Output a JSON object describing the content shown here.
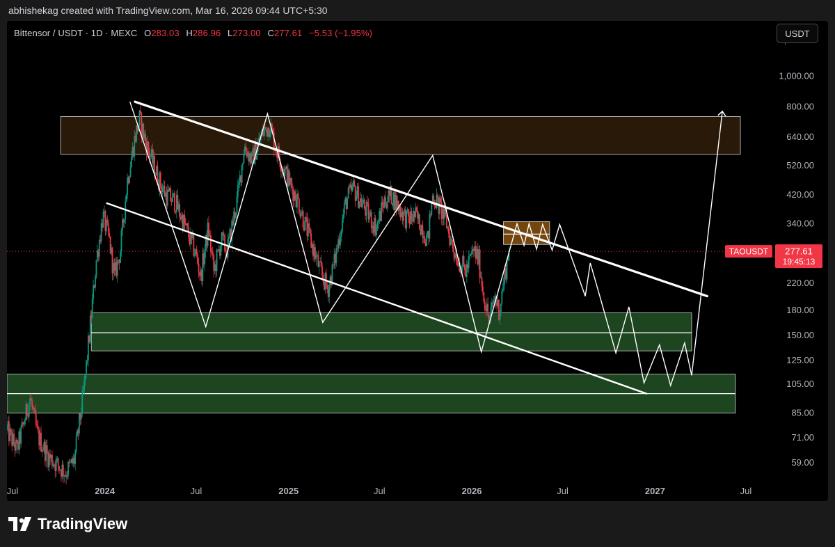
{
  "header": {
    "credit": "abhishekag created with TradingView.com, Mar 16, 2026 09:44 UTC+5:30"
  },
  "legend": {
    "symbol": "Bittensor / USDT · 1D · MEXC",
    "o_label": "O",
    "o_val": "283.03",
    "h_label": "H",
    "h_val": "286.96",
    "l_label": "L",
    "l_val": "273.00",
    "c_label": "C",
    "c_val": "277.61",
    "change": "−5.53 (−1.95%)"
  },
  "currency_button": "USDT",
  "price_tag": {
    "symbol": "TAOUSDT",
    "price": "277.61",
    "countdown": "19:45:13"
  },
  "brand": {
    "name": "TradingView"
  },
  "colors": {
    "background": "#000000",
    "up": "#089981",
    "down": "#f23645",
    "resistance_zone": "#2a1a08",
    "support_zone": "#1f4a22",
    "orange_zone": "#7a4a10",
    "price_tag": "#f23645",
    "drawing": "#ffffff"
  },
  "chart_data": {
    "type": "candlestick",
    "scale": "log",
    "ylim": [
      52,
      1500
    ],
    "x_range": [
      "2023-06-20",
      "2027-08-20"
    ],
    "y_ticks": [
      "1,300.00",
      "1,000.00",
      "800.00",
      "640.00",
      "520.00",
      "420.00",
      "340.00",
      "220.00",
      "180.00",
      "150.00",
      "125.00",
      "105.00",
      "85.00",
      "71.00",
      "59.00"
    ],
    "y_tick_values": [
      1300,
      1000,
      800,
      640,
      520,
      420,
      340,
      220,
      180,
      150,
      125,
      105,
      85,
      71,
      59
    ],
    "x_ticks": [
      {
        "label": "Jul",
        "date": "2023-07-01",
        "bold": false
      },
      {
        "label": "2024",
        "date": "2024-01-01",
        "bold": true
      },
      {
        "label": "Jul",
        "date": "2024-07-01",
        "bold": false
      },
      {
        "label": "2025",
        "date": "2025-01-01",
        "bold": true
      },
      {
        "label": "Jul",
        "date": "2025-07-01",
        "bold": false
      },
      {
        "label": "2026",
        "date": "2026-01-01",
        "bold": true
      },
      {
        "label": "Jul",
        "date": "2026-07-01",
        "bold": false
      },
      {
        "label": "2027",
        "date": "2027-01-01",
        "bold": true
      },
      {
        "label": "Jul",
        "date": "2027-07-01",
        "bold": false
      }
    ],
    "last_price": 277.61,
    "price_path": [
      [
        "2023-06-20",
        75
      ],
      [
        "2023-07-10",
        65
      ],
      [
        "2023-08-05",
        95
      ],
      [
        "2023-08-20",
        72
      ],
      [
        "2023-09-10",
        62
      ],
      [
        "2023-10-15",
        55
      ],
      [
        "2023-11-01",
        60
      ],
      [
        "2023-11-20",
        100
      ],
      [
        "2023-12-01",
        150
      ],
      [
        "2023-12-15",
        260
      ],
      [
        "2023-12-28",
        360
      ],
      [
        "2024-01-10",
        300
      ],
      [
        "2024-01-20",
        230
      ],
      [
        "2024-02-01",
        280
      ],
      [
        "2024-02-15",
        470
      ],
      [
        "2024-03-01",
        640
      ],
      [
        "2024-03-10",
        730
      ],
      [
        "2024-03-25",
        600
      ],
      [
        "2024-04-15",
        480
      ],
      [
        "2024-05-01",
        420
      ],
      [
        "2024-05-20",
        400
      ],
      [
        "2024-06-10",
        330
      ],
      [
        "2024-07-01",
        270
      ],
      [
        "2024-07-10",
        230
      ],
      [
        "2024-07-25",
        330
      ],
      [
        "2024-08-05",
        240
      ],
      [
        "2024-08-20",
        300
      ],
      [
        "2024-09-01",
        280
      ],
      [
        "2024-09-20",
        400
      ],
      [
        "2024-10-05",
        600
      ],
      [
        "2024-10-20",
        540
      ],
      [
        "2024-11-10",
        660
      ],
      [
        "2024-11-25",
        700
      ],
      [
        "2024-12-05",
        600
      ],
      [
        "2024-12-20",
        520
      ],
      [
        "2025-01-05",
        450
      ],
      [
        "2025-01-20",
        400
      ],
      [
        "2025-02-05",
        330
      ],
      [
        "2025-02-20",
        280
      ],
      [
        "2025-03-05",
        240
      ],
      [
        "2025-03-20",
        210
      ],
      [
        "2025-04-01",
        250
      ],
      [
        "2025-04-15",
        330
      ],
      [
        "2025-04-25",
        400
      ],
      [
        "2025-05-10",
        440
      ],
      [
        "2025-05-25",
        400
      ],
      [
        "2025-06-10",
        360
      ],
      [
        "2025-06-25",
        330
      ],
      [
        "2025-07-10",
        400
      ],
      [
        "2025-07-25",
        420
      ],
      [
        "2025-08-10",
        380
      ],
      [
        "2025-08-25",
        350
      ],
      [
        "2025-09-10",
        360
      ],
      [
        "2025-09-25",
        330
      ],
      [
        "2025-10-05",
        300
      ],
      [
        "2025-10-15",
        420
      ],
      [
        "2025-10-30",
        380
      ],
      [
        "2025-11-10",
        350
      ],
      [
        "2025-11-20",
        300
      ],
      [
        "2025-12-05",
        260
      ],
      [
        "2025-12-20",
        240
      ],
      [
        "2026-01-05",
        280
      ],
      [
        "2026-01-15",
        260
      ],
      [
        "2026-01-25",
        200
      ],
      [
        "2026-02-05",
        165
      ],
      [
        "2026-02-15",
        200
      ],
      [
        "2026-02-25",
        180
      ],
      [
        "2026-03-05",
        220
      ],
      [
        "2026-03-16",
        277.61
      ]
    ],
    "zones": [
      {
        "name": "resistance-zone",
        "from": "2023-10-05",
        "to": "2027-06-20",
        "top": 745,
        "bottom": 565,
        "line": null
      },
      {
        "name": "orange-zone",
        "from": "2026-03-05",
        "to": "2026-06-05",
        "top": 345,
        "bottom": 292,
        "line": 315
      },
      {
        "name": "support-zone-upper",
        "from": "2023-12-05",
        "to": "2027-03-15",
        "top": 177,
        "bottom": 134,
        "line": 153
      },
      {
        "name": "support-zone-lower",
        "from": "2023-06-20",
        "to": "2027-06-10",
        "top": 113,
        "bottom": 85,
        "line": 98
      }
    ],
    "trendlines": [
      {
        "name": "upper-trendline",
        "from": [
          "2024-03-01",
          830
        ],
        "to": [
          "2027-04-15",
          200
        ]
      },
      {
        "name": "lower-trendline",
        "from": [
          "2024-01-05",
          395
        ],
        "to": [
          "2026-12-15",
          98
        ]
      }
    ],
    "projection_path": [
      [
        "2024-02-20",
        830
      ],
      [
        "2024-07-20",
        160
      ],
      [
        "2024-11-20",
        760
      ],
      [
        "2025-03-10",
        165
      ],
      [
        "2025-10-15",
        560
      ],
      [
        "2026-01-20",
        133
      ],
      [
        "2026-04-01",
        340
      ],
      [
        "2026-04-15",
        290
      ],
      [
        "2026-04-25",
        340
      ],
      [
        "2026-05-10",
        282
      ],
      [
        "2026-05-22",
        338
      ],
      [
        "2026-06-10",
        280
      ],
      [
        "2026-06-25",
        338
      ],
      [
        "2026-07-20",
        262
      ],
      [
        "2026-08-15",
        200
      ],
      [
        "2026-08-25",
        255
      ],
      [
        "2026-09-15",
        195
      ],
      [
        "2026-10-15",
        132
      ],
      [
        "2026-11-10",
        185
      ],
      [
        "2026-12-10",
        106
      ],
      [
        "2027-01-10",
        140
      ],
      [
        "2027-02-01",
        104
      ],
      [
        "2027-03-01",
        142
      ],
      [
        "2027-03-15",
        112
      ],
      [
        "2027-05-15",
        770
      ]
    ]
  }
}
